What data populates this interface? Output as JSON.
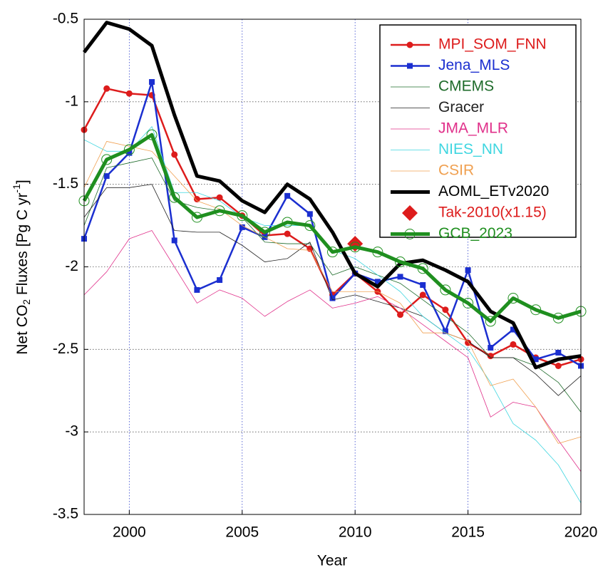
{
  "chart_data": {
    "type": "line",
    "x_label": "Year",
    "y_label": [
      "Net CO",
      "2",
      " Fluxes [Pg C yr",
      "-1",
      "]"
    ],
    "x": [
      1998,
      1999,
      2000,
      2001,
      2002,
      2003,
      2004,
      2005,
      2006,
      2007,
      2008,
      2009,
      2010,
      2011,
      2012,
      2013,
      2014,
      2015,
      2016,
      2017,
      2018,
      2019,
      2020
    ],
    "xlim": [
      1998,
      2020
    ],
    "xticks": [
      2000,
      2005,
      2010,
      2015,
      2020
    ],
    "ylim": [
      -3.5,
      -0.5
    ],
    "yticks": [
      -3.5,
      -3,
      -2.5,
      -2,
      -1.5,
      -1,
      -0.5
    ],
    "grid": true,
    "legend": "upper right",
    "series": [
      {
        "name": "MPI_SOM_FNN",
        "color": "#dd1c1c",
        "width": 2.5,
        "marker": "circle",
        "values": [
          -1.17,
          -0.92,
          -0.95,
          -0.96,
          -1.32,
          -1.59,
          -1.58,
          -1.69,
          -1.81,
          -1.8,
          -1.89,
          -2.17,
          -2.04,
          -2.15,
          -2.29,
          -2.17,
          -2.26,
          -2.46,
          -2.54,
          -2.47,
          -2.55,
          -2.6,
          -2.56
        ]
      },
      {
        "name": "Jena_MLS",
        "color": "#1b2fd0",
        "width": 2.5,
        "marker": "square",
        "values": [
          -1.83,
          -1.45,
          -1.31,
          -0.88,
          -1.84,
          -2.14,
          -2.08,
          -1.76,
          -1.82,
          -1.57,
          -1.68,
          -2.19,
          -2.04,
          -2.09,
          -2.06,
          -2.11,
          -2.39,
          -2.02,
          -2.49,
          -2.38,
          -2.56,
          -2.52,
          -2.6
        ]
      },
      {
        "name": "CMEMS",
        "color": "#1e6b2a",
        "width": 0.8,
        "marker": "none",
        "values": [
          -1.75,
          -1.4,
          -1.37,
          -1.34,
          -1.6,
          -1.64,
          -1.66,
          -1.7,
          -1.85,
          -1.86,
          -1.86,
          -2.05,
          -2.0,
          -2.05,
          -2.1,
          -2.2,
          -2.3,
          -2.4,
          -2.55,
          -2.55,
          -2.6,
          -2.7,
          -2.88
        ]
      },
      {
        "name": "Gracer",
        "color": "#222222",
        "width": 0.8,
        "marker": "none",
        "values": [
          -1.7,
          -1.52,
          -1.52,
          -1.5,
          -1.78,
          -1.79,
          -1.79,
          -1.87,
          -1.97,
          -1.95,
          -1.85,
          -2.2,
          -2.17,
          -2.21,
          -2.25,
          -2.3,
          -2.4,
          -2.45,
          -2.55,
          -2.55,
          -2.65,
          -2.78,
          -2.66
        ]
      },
      {
        "name": "JMA_MLR",
        "color": "#e0308a",
        "width": 0.8,
        "marker": "none",
        "values": [
          -2.17,
          -2.03,
          -1.83,
          -1.78,
          -2.0,
          -2.22,
          -2.14,
          -2.19,
          -2.3,
          -2.21,
          -2.14,
          -2.25,
          -2.22,
          -2.18,
          -2.25,
          -2.35,
          -2.45,
          -2.55,
          -2.91,
          -2.82,
          -2.85,
          -3.05,
          -3.24
        ]
      },
      {
        "name": "NIES_NN",
        "color": "#3fd6e0",
        "width": 0.8,
        "marker": "none",
        "values": [
          -1.23,
          -1.3,
          -1.3,
          -1.15,
          -1.55,
          -1.55,
          -1.6,
          -1.7,
          -1.75,
          -1.75,
          -1.75,
          -1.9,
          -1.95,
          -2.05,
          -2.15,
          -2.3,
          -2.4,
          -2.5,
          -2.7,
          -2.95,
          -3.05,
          -3.2,
          -3.43
        ]
      },
      {
        "name": "CSIR",
        "color": "#f0a050",
        "width": 0.8,
        "marker": "none",
        "values": [
          -1.52,
          -1.24,
          -1.27,
          -1.3,
          -1.45,
          -1.6,
          -1.65,
          -1.75,
          -1.82,
          -1.89,
          -1.9,
          -2.15,
          -2.15,
          -2.15,
          -2.22,
          -2.4,
          -2.4,
          -2.45,
          -2.72,
          -2.68,
          -2.85,
          -3.07,
          -3.03
        ]
      },
      {
        "name": "AOML_ETv2020",
        "color": "#000000",
        "width": 5,
        "marker": "none",
        "values": [
          -0.7,
          -0.52,
          -0.56,
          -0.66,
          -1.08,
          -1.45,
          -1.48,
          -1.6,
          -1.67,
          -1.5,
          -1.59,
          -1.79,
          -2.04,
          -2.12,
          -1.98,
          -1.96,
          -2.02,
          -2.09,
          -2.27,
          -2.34,
          -2.61,
          -2.56,
          -2.54
        ]
      },
      {
        "name": "Tak-2010(x1.15)",
        "color": "#dd1c1c",
        "width": 0,
        "marker": "diamond",
        "values": [
          null,
          null,
          null,
          null,
          null,
          null,
          null,
          null,
          null,
          null,
          null,
          null,
          -1.86,
          null,
          null,
          null,
          null,
          null,
          null,
          null,
          null,
          null,
          null
        ]
      },
      {
        "name": "GCB_2023",
        "color": "#1f8f1f",
        "width": 5,
        "marker": "open-circle",
        "values": [
          -1.6,
          -1.35,
          -1.29,
          -1.2,
          -1.58,
          -1.7,
          -1.66,
          -1.69,
          -1.79,
          -1.73,
          -1.75,
          -1.91,
          -1.88,
          -1.91,
          -1.97,
          -2.01,
          -2.14,
          -2.22,
          -2.33,
          -2.19,
          -2.26,
          -2.31,
          -2.27
        ]
      }
    ]
  }
}
